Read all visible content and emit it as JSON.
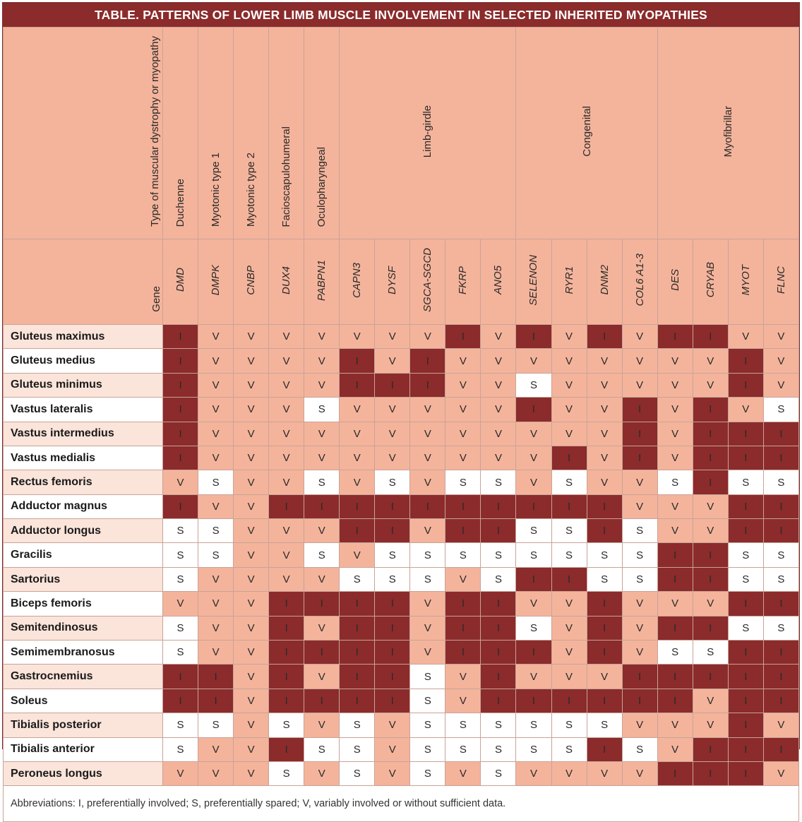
{
  "title": "TABLE. PATTERNS OF LOWER LIMB MUSCLE INVOLVEMENT IN SELECTED INHERITED MYOPATHIES",
  "corner_type_label": "Type of muscular dystrophy or myopathy",
  "corner_gene_label": "Gene",
  "types": [
    {
      "label": "Duchenne",
      "span": 1
    },
    {
      "label": "Myotonic type 1",
      "span": 1
    },
    {
      "label": "Myotonic type 2",
      "span": 1
    },
    {
      "label": "Facioscapulohumeral",
      "span": 1
    },
    {
      "label": "Oculopharyngeal",
      "span": 1
    },
    {
      "label": "Limb-girdle",
      "span": 5
    },
    {
      "label": "Congenital",
      "span": 4
    },
    {
      "label": "Myofibrillar",
      "span": 4
    }
  ],
  "genes": [
    "DMD",
    "DMPK",
    "CNBP",
    "DUX4",
    "PABPN1",
    "CAPN3",
    "DYSF",
    "SGCA-SGCD",
    "FKRP",
    "ANO5",
    "SELENON",
    "RYR1",
    "DNM2",
    "COL6 A1-3",
    "DES",
    "CRYAB",
    "MYOT",
    "FLNC"
  ],
  "rows": [
    {
      "muscle": "Gluteus maximus",
      "values": [
        "I",
        "V",
        "V",
        "V",
        "V",
        "V",
        "V",
        "V",
        "I",
        "V",
        "I",
        "V",
        "I",
        "V",
        "I",
        "I",
        "V",
        "V"
      ]
    },
    {
      "muscle": "Gluteus medius",
      "values": [
        "I",
        "V",
        "V",
        "V",
        "V",
        "I",
        "V",
        "I",
        "V",
        "V",
        "V",
        "V",
        "V",
        "V",
        "V",
        "V",
        "I",
        "V"
      ]
    },
    {
      "muscle": "Gluteus minimus",
      "values": [
        "I",
        "V",
        "V",
        "V",
        "V",
        "I",
        "I",
        "I",
        "V",
        "V",
        "S",
        "V",
        "V",
        "V",
        "V",
        "V",
        "I",
        "V"
      ]
    },
    {
      "muscle": "Vastus lateralis",
      "values": [
        "I",
        "V",
        "V",
        "V",
        "S",
        "V",
        "V",
        "V",
        "V",
        "V",
        "I",
        "V",
        "V",
        "I",
        "V",
        "I",
        "V",
        "S"
      ]
    },
    {
      "muscle": "Vastus intermedius",
      "values": [
        "I",
        "V",
        "V",
        "V",
        "V",
        "V",
        "V",
        "V",
        "V",
        "V",
        "V",
        "V",
        "V",
        "I",
        "V",
        "I",
        "I",
        "I"
      ]
    },
    {
      "muscle": "Vastus medialis",
      "values": [
        "I",
        "V",
        "V",
        "V",
        "V",
        "V",
        "V",
        "V",
        "V",
        "V",
        "V",
        "I",
        "V",
        "I",
        "V",
        "I",
        "I",
        "I"
      ]
    },
    {
      "muscle": "Rectus femoris",
      "values": [
        "V",
        "S",
        "V",
        "V",
        "S",
        "V",
        "S",
        "V",
        "S",
        "S",
        "V",
        "S",
        "V",
        "V",
        "S",
        "I",
        "S",
        "S"
      ]
    },
    {
      "muscle": "Adductor magnus",
      "values": [
        "I",
        "V",
        "V",
        "I",
        "I",
        "I",
        "I",
        "I",
        "I",
        "I",
        "I",
        "I",
        "I",
        "V",
        "V",
        "V",
        "I",
        "I"
      ]
    },
    {
      "muscle": "Adductor longus",
      "values": [
        "S",
        "S",
        "V",
        "V",
        "V",
        "I",
        "I",
        "V",
        "I",
        "I",
        "S",
        "S",
        "I",
        "S",
        "V",
        "V",
        "I",
        "I"
      ]
    },
    {
      "muscle": "Gracilis",
      "values": [
        "S",
        "S",
        "V",
        "V",
        "S",
        "V",
        "S",
        "S",
        "S",
        "S",
        "S",
        "S",
        "S",
        "S",
        "I",
        "I",
        "S",
        "S"
      ]
    },
    {
      "muscle": "Sartorius",
      "values": [
        "S",
        "V",
        "V",
        "V",
        "V",
        "S",
        "S",
        "S",
        "V",
        "S",
        "I",
        "I",
        "S",
        "S",
        "I",
        "I",
        "S",
        "S"
      ]
    },
    {
      "muscle": "Biceps femoris",
      "values": [
        "V",
        "V",
        "V",
        "I",
        "I",
        "I",
        "I",
        "V",
        "I",
        "I",
        "V",
        "V",
        "I",
        "V",
        "V",
        "V",
        "I",
        "I"
      ]
    },
    {
      "muscle": "Semitendinosus",
      "values": [
        "S",
        "V",
        "V",
        "I",
        "V",
        "I",
        "I",
        "V",
        "I",
        "I",
        "S",
        "V",
        "I",
        "V",
        "I",
        "I",
        "S",
        "S"
      ]
    },
    {
      "muscle": "Semimembranosus",
      "values": [
        "S",
        "V",
        "V",
        "I",
        "I",
        "I",
        "I",
        "V",
        "I",
        "I",
        "I",
        "V",
        "I",
        "V",
        "S",
        "S",
        "I",
        "I"
      ]
    },
    {
      "muscle": "Gastrocnemius",
      "values": [
        "I",
        "I",
        "V",
        "I",
        "V",
        "I",
        "I",
        "S",
        "V",
        "I",
        "V",
        "V",
        "V",
        "I",
        "I",
        "I",
        "I",
        "I"
      ]
    },
    {
      "muscle": "Soleus",
      "values": [
        "I",
        "I",
        "V",
        "I",
        "I",
        "I",
        "I",
        "S",
        "V",
        "I",
        "I",
        "I",
        "I",
        "I",
        "I",
        "V",
        "I",
        "I"
      ]
    },
    {
      "muscle": "Tibialis posterior",
      "values": [
        "S",
        "S",
        "V",
        "S",
        "V",
        "S",
        "V",
        "S",
        "S",
        "S",
        "S",
        "S",
        "S",
        "V",
        "V",
        "V",
        "I",
        "V"
      ]
    },
    {
      "muscle": "Tibialis anterior",
      "values": [
        "S",
        "V",
        "V",
        "I",
        "S",
        "S",
        "V",
        "S",
        "S",
        "S",
        "S",
        "S",
        "I",
        "S",
        "V",
        "I",
        "I",
        "I"
      ]
    },
    {
      "muscle": "Peroneus longus",
      "values": [
        "V",
        "V",
        "V",
        "S",
        "V",
        "S",
        "V",
        "S",
        "V",
        "S",
        "V",
        "V",
        "V",
        "V",
        "I",
        "I",
        "I",
        "V"
      ]
    }
  ],
  "footnote": "Abbreviations: I, preferentially involved; S, preferentially spared; V, variably involved or without sufficient data.",
  "colors": {
    "involved": "#8b2b2b",
    "variable": "#f4b49b",
    "spared": "#ffffff",
    "title_bg": "#8b2b2b"
  }
}
